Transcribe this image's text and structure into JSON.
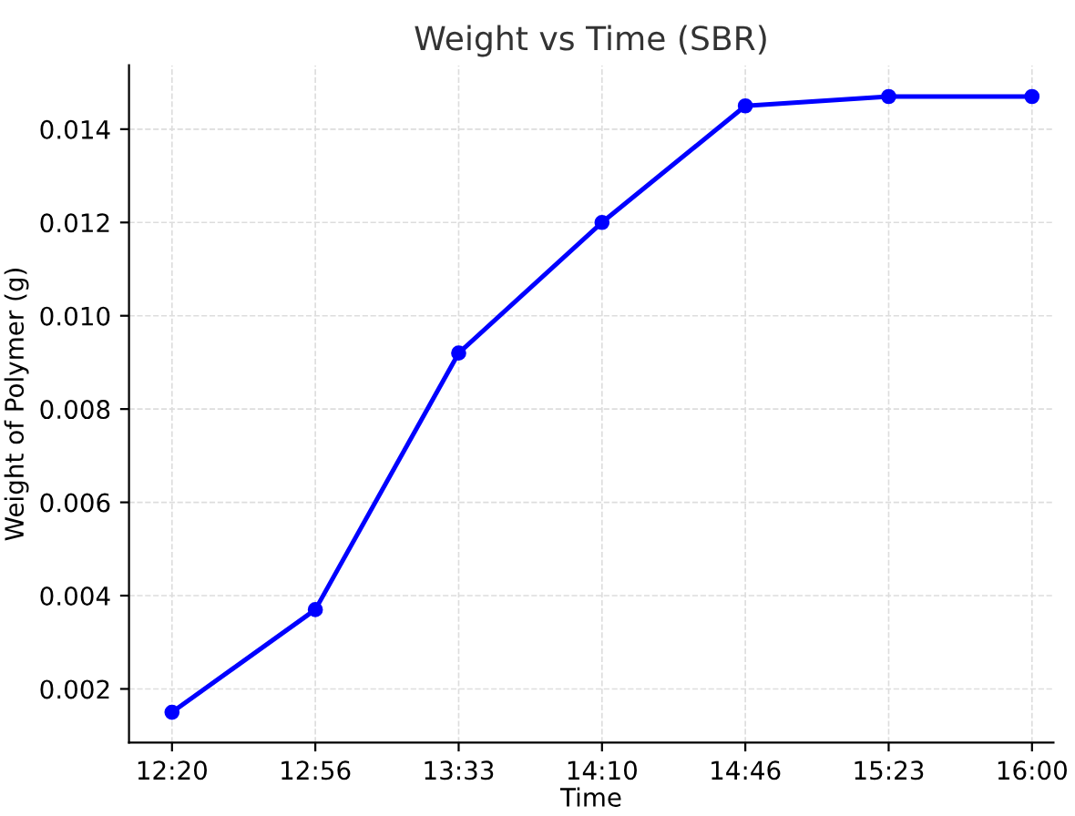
{
  "chart_data": {
    "type": "line",
    "title": "Weight vs Time (SBR)",
    "xlabel": "Time",
    "ylabel": "Weight of Polymer (g)",
    "categories": [
      "12:20",
      "12:56",
      "13:33",
      "14:10",
      "14:46",
      "15:23",
      "16:00"
    ],
    "series": [
      {
        "color": "#0000ff",
        "values": [
          0.0015,
          0.0037,
          0.0092,
          0.012,
          0.0145,
          0.0147,
          0.0147
        ]
      }
    ],
    "ylim": [
      0.00085,
      0.01537
    ],
    "yticks": [
      {
        "value": 0.002,
        "label": "0.002"
      },
      {
        "value": 0.004,
        "label": "0.004"
      },
      {
        "value": 0.006,
        "label": "0.006"
      },
      {
        "value": 0.008,
        "label": "0.008"
      },
      {
        "value": 0.01,
        "label": "0.010"
      },
      {
        "value": 0.012,
        "label": "0.012"
      },
      {
        "value": 0.014,
        "label": "0.014"
      }
    ],
    "grid": true,
    "marker": "circle",
    "line_style": "solid"
  }
}
